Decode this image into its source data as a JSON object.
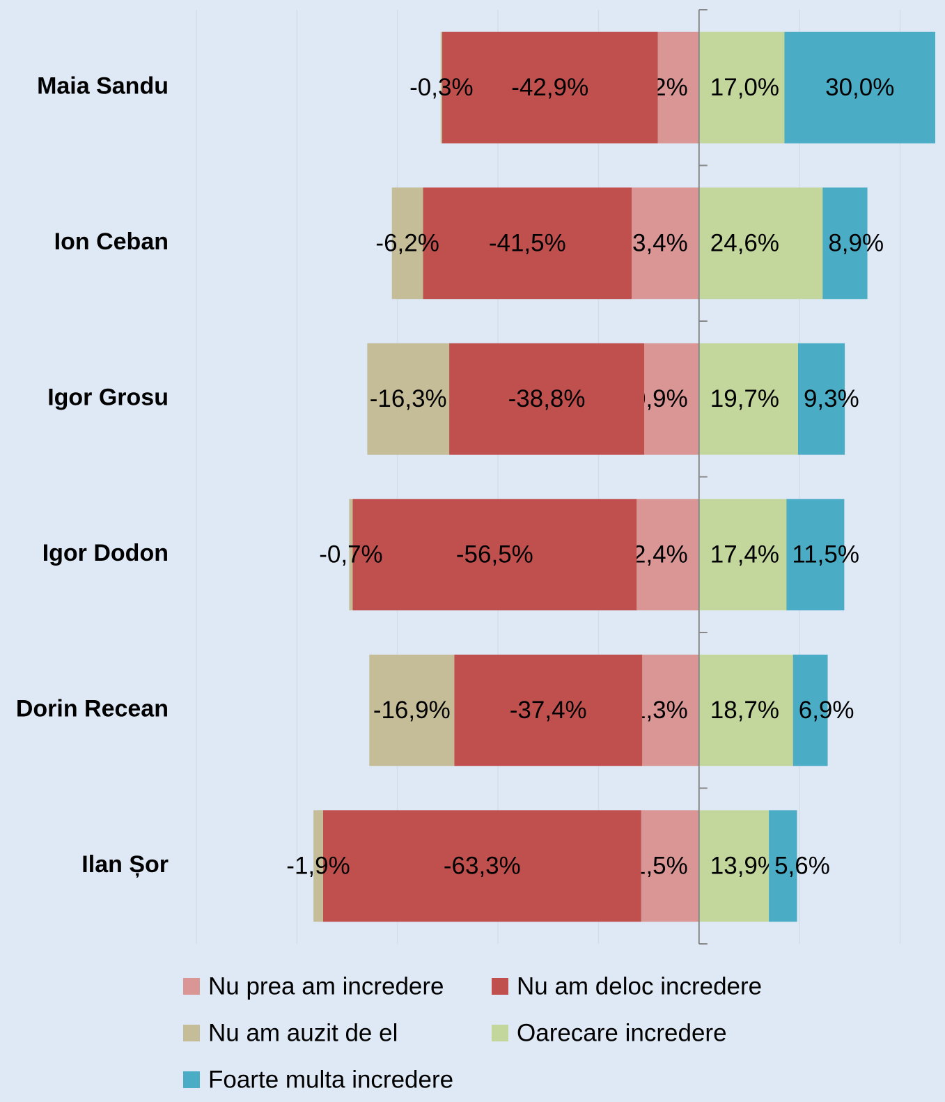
{
  "chart_data": {
    "type": "diverging_bar",
    "categories": [
      "Maia Sandu",
      "Ion Ceban",
      "Igor Grosu",
      "Igor Dodon",
      "Dorin Recean",
      "Ilan Șor"
    ],
    "series": [
      {
        "name": "Nu prea am incredere",
        "color": "#d99694",
        "values": [
          -8.2,
          -13.4,
          -10.9,
          -12.4,
          -11.3,
          -11.5
        ],
        "value_labels": [
          "-8,2%",
          "-13,4%",
          "-10,9%",
          "-12,4%",
          "-11,3%",
          "-11,5%"
        ]
      },
      {
        "name": "Nu am deloc incredere",
        "color": "#c0504d",
        "values": [
          -42.9,
          -41.5,
          -38.8,
          -56.5,
          -37.4,
          -63.3
        ],
        "value_labels": [
          "-42,9%",
          "-41,5%",
          "-38,8%",
          "-56,5%",
          "-37,4%",
          "-63,3%"
        ]
      },
      {
        "name": "Nu am auzit de el",
        "color": "#c4bd97",
        "values": [
          -0.3,
          -6.2,
          -16.3,
          -0.7,
          -16.9,
          -1.9
        ],
        "value_labels": [
          "-0,3%",
          "-6,2%",
          "-16,3%",
          "-0,7%",
          "-16,9%",
          "-1,9%"
        ]
      },
      {
        "name": "Oarecare incredere",
        "color": "#c3d69b",
        "values": [
          17.0,
          24.6,
          19.7,
          17.4,
          18.7,
          13.9
        ],
        "value_labels": [
          "17,0%",
          "24,6%",
          "19,7%",
          "17,4%",
          "18,7%",
          "13,9%"
        ]
      },
      {
        "name": "Foarte multa incredere",
        "color": "#4bacc6",
        "values": [
          30.0,
          8.9,
          9.3,
          11.5,
          6.9,
          5.6
        ],
        "value_labels": [
          "30,0%",
          "8,9%",
          "9,3%",
          "11,5%",
          "6,9%",
          "5,6%"
        ]
      }
    ],
    "xlim": [
      -100,
      47
    ],
    "xticks": [
      -100,
      -80,
      -60,
      -40,
      -20,
      0,
      20,
      40
    ],
    "grid": true
  }
}
